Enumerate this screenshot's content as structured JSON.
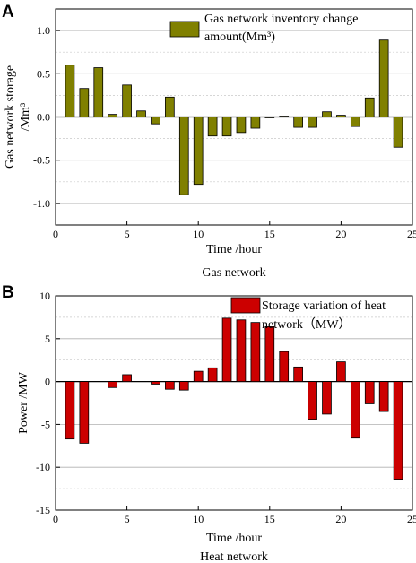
{
  "chart_data": [
    {
      "type": "bar",
      "panel_letter": "A",
      "x": [
        1,
        2,
        3,
        4,
        5,
        6,
        7,
        8,
        9,
        10,
        11,
        12,
        13,
        14,
        15,
        16,
        17,
        18,
        19,
        20,
        21,
        22,
        23,
        24
      ],
      "values": [
        0.6,
        0.33,
        0.57,
        0.03,
        0.37,
        0.07,
        -0.08,
        0.23,
        -0.9,
        -0.78,
        -0.22,
        -0.22,
        -0.18,
        -0.13,
        -0.01,
        0.01,
        -0.12,
        -0.12,
        0.06,
        0.02,
        -0.11,
        0.22,
        0.89,
        -0.35
      ],
      "series_name": "Gas network inventory change amount(Mm³)",
      "legend_lines": [
        "Gas network inventory change",
        "amount(Mm³)"
      ],
      "xlabel": "Time /hour",
      "ylabel_lines": [
        "Gas network storage",
        "/Mm³"
      ],
      "caption": "Gas network",
      "xlim": [
        0,
        25
      ],
      "ylim": [
        -1.25,
        1.25
      ],
      "xticks": [
        0,
        5,
        10,
        15,
        20,
        25
      ],
      "yticks": [
        -1.0,
        -0.5,
        0.0,
        0.5,
        1.0
      ],
      "ytick_labels": [
        "-1.0",
        "-0.5",
        "0.0",
        "0.5",
        "1.0"
      ],
      "minor_yticks": [
        -0.75,
        -0.25,
        0.25,
        0.75
      ],
      "grid": true,
      "legend_position": "top",
      "color": "#808000"
    },
    {
      "type": "bar",
      "panel_letter": "B",
      "x": [
        1,
        2,
        3,
        4,
        5,
        6,
        7,
        8,
        9,
        10,
        11,
        12,
        13,
        14,
        15,
        16,
        17,
        18,
        19,
        20,
        21,
        22,
        23,
        24
      ],
      "values": [
        -6.7,
        -7.2,
        0,
        -0.7,
        0.8,
        0,
        -0.3,
        -0.9,
        -1.0,
        1.2,
        1.6,
        7.4,
        7.2,
        6.9,
        6.4,
        3.5,
        1.7,
        -4.4,
        -3.8,
        2.3,
        -6.6,
        -2.6,
        -3.5,
        -11.4
      ],
      "series_name": "Storage variation of heat network（MW）",
      "legend_lines": [
        "Storage variation of heat",
        "network（MW）"
      ],
      "xlabel": "Time /hour",
      "ylabel_lines": [
        "Power /MW"
      ],
      "caption": "Heat network",
      "xlim": [
        0,
        25
      ],
      "ylim": [
        -15,
        10
      ],
      "xticks": [
        0,
        5,
        10,
        15,
        20,
        25
      ],
      "yticks": [
        -15,
        -10,
        -5,
        0,
        5,
        10
      ],
      "ytick_labels": [
        "-15",
        "-10",
        "-5",
        "0",
        "5",
        "10"
      ],
      "minor_yticks": [
        -12.5,
        -7.5,
        -2.5,
        2.5,
        7.5
      ],
      "grid": true,
      "legend_position": "top",
      "color": "#cc0000"
    }
  ]
}
